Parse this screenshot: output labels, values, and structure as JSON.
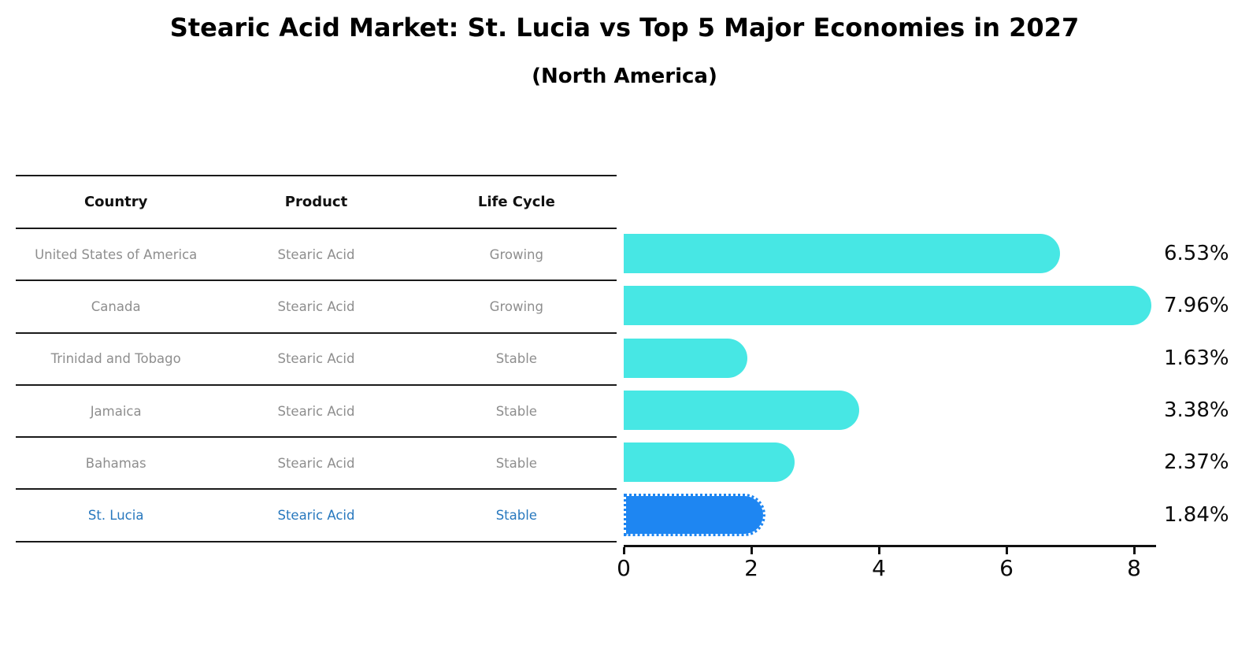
{
  "title": "Stearic Acid Market: St. Lucia vs Top 5 Major Economies in 2027",
  "subtitle": "(North America)",
  "table": {
    "headers": [
      "Country",
      "Product",
      "Life Cycle"
    ],
    "rows": [
      {
        "country": "United States of America",
        "product": "Stearic Acid",
        "life_cycle": "Growing",
        "highlight": false
      },
      {
        "country": "Canada",
        "product": "Stearic Acid",
        "life_cycle": "Growing",
        "highlight": false
      },
      {
        "country": "Trinidad and Tobago",
        "product": "Stearic Acid",
        "life_cycle": "Stable",
        "highlight": false
      },
      {
        "country": "Jamaica",
        "product": "Stearic Acid",
        "life_cycle": "Stable",
        "highlight": false
      },
      {
        "country": "Bahamas",
        "product": "Stearic Acid",
        "life_cycle": "Stable",
        "highlight": false
      },
      {
        "country": "St. Lucia",
        "product": "Stearic Acid",
        "life_cycle": "Stable",
        "highlight": true
      }
    ]
  },
  "chart_data": {
    "type": "bar",
    "orientation": "horizontal",
    "title": "Stearic Acid Market: St. Lucia vs Top 5 Major Economies in 2027",
    "subtitle": "(North America)",
    "categories": [
      "United States of America",
      "Canada",
      "Trinidad and Tobago",
      "Jamaica",
      "Bahamas",
      "St. Lucia"
    ],
    "values": [
      6.53,
      7.96,
      1.63,
      3.38,
      2.37,
      1.84
    ],
    "labels": [
      "6.53%",
      "7.96%",
      "1.63%",
      "3.38%",
      "2.37%",
      "1.84%"
    ],
    "unit": "%",
    "xlim": [
      0,
      8.35
    ],
    "xticks": [
      "0",
      "2",
      "4",
      "6",
      "8"
    ],
    "grid": false,
    "legend": false,
    "bar_color": "#47E7E4",
    "highlight_color": "#1E86F2",
    "highlight_index": 5,
    "highlight_text_color": "#2878BE"
  },
  "colors": {
    "background": "#FFFFFF",
    "bar": "#47E7E4",
    "highlight_bar": "#1E86F2",
    "highlight_text": "#2878BE",
    "table_text": "#8E8E8E",
    "header_text": "#111111",
    "line": "#1A1A1A"
  }
}
